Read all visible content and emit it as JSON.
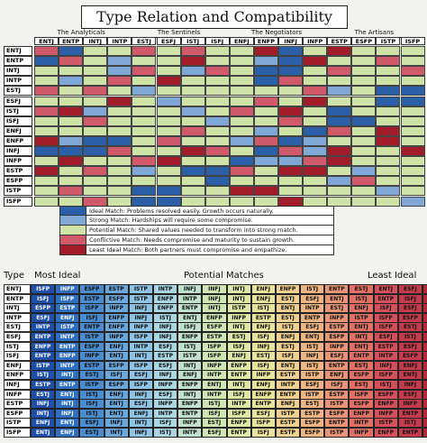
{
  "title": "Type Relation and Compatibility",
  "groups": [
    "The Analyticals",
    "The Sentinels",
    "The Negotiators",
    "The Artisans"
  ],
  "types": [
    "ENTJ",
    "ENTP",
    "INTJ",
    "INTP",
    "ESTJ",
    "ESFJ",
    "ISTJ",
    "ISFJ",
    "ENFJ",
    "ENFP",
    "INFJ",
    "INFP",
    "ESTP",
    "ESFP",
    "ISTP",
    "ISFP"
  ],
  "colors": {
    "ideal": "#2b5fa8",
    "strong": "#7fa8d6",
    "potential": "#cfe3a8",
    "conflict": "#d05a6a",
    "least": "#a21c2a"
  },
  "matrix": [
    [
      "conflict",
      "ideal",
      "potential",
      "potential",
      "conflict",
      "potential",
      "conflict",
      "potential",
      "potential",
      "least",
      "ideal",
      "potential",
      "least",
      "potential",
      "potential",
      "potential"
    ],
    [
      "ideal",
      "conflict",
      "potential",
      "strong",
      "potential",
      "potential",
      "least",
      "potential",
      "potential",
      "strong",
      "ideal",
      "least",
      "potential",
      "potential",
      "conflict",
      "potential"
    ],
    [
      "potential",
      "potential",
      "potential",
      "strong",
      "conflict",
      "potential",
      "strong",
      "conflict",
      "potential",
      "ideal",
      "ideal",
      "potential",
      "conflict",
      "potential",
      "potential",
      "conflict"
    ],
    [
      "potential",
      "strong",
      "potential",
      "conflict",
      "potential",
      "least",
      "potential",
      "potential",
      "potential",
      "ideal",
      "conflict",
      "potential",
      "potential",
      "potential",
      "potential",
      "potential"
    ],
    [
      "conflict",
      "potential",
      "conflict",
      "potential",
      "strong",
      "potential",
      "potential",
      "potential",
      "potential",
      "potential",
      "potential",
      "conflict",
      "strong",
      "potential",
      "ideal",
      "ideal"
    ],
    [
      "potential",
      "potential",
      "potential",
      "least",
      "potential",
      "strong",
      "potential",
      "potential",
      "potential",
      "conflict",
      "potential",
      "least",
      "potential",
      "potential",
      "ideal",
      "ideal"
    ],
    [
      "conflict",
      "least",
      "strong",
      "potential",
      "potential",
      "potential",
      "strong",
      "potential",
      "conflict",
      "potential",
      "least",
      "potential",
      "ideal",
      "potential",
      "potential",
      "potential"
    ],
    [
      "potential",
      "potential",
      "conflict",
      "potential",
      "potential",
      "potential",
      "potential",
      "strong",
      "potential",
      "potential",
      "conflict",
      "potential",
      "ideal",
      "ideal",
      "potential",
      "potential"
    ],
    [
      "potential",
      "potential",
      "potential",
      "potential",
      "potential",
      "potential",
      "conflict",
      "potential",
      "potential",
      "strong",
      "potential",
      "ideal",
      "conflict",
      "potential",
      "least",
      "potential"
    ],
    [
      "least",
      "strong",
      "ideal",
      "ideal",
      "potential",
      "conflict",
      "potential",
      "potential",
      "strong",
      "conflict",
      "ideal",
      "strong",
      "potential",
      "potential",
      "least",
      "potential"
    ],
    [
      "ideal",
      "ideal",
      "ideal",
      "conflict",
      "potential",
      "potential",
      "least",
      "conflict",
      "potential",
      "ideal",
      "conflict",
      "strong",
      "least",
      "potential",
      "potential",
      "least"
    ],
    [
      "potential",
      "least",
      "potential",
      "potential",
      "conflict",
      "least",
      "potential",
      "potential",
      "ideal",
      "strong",
      "strong",
      "conflict",
      "least",
      "potential",
      "potential",
      "potential"
    ],
    [
      "least",
      "potential",
      "conflict",
      "potential",
      "strong",
      "potential",
      "ideal",
      "ideal",
      "conflict",
      "potential",
      "least",
      "least",
      "potential",
      "strong",
      "potential",
      "potential"
    ],
    [
      "potential",
      "potential",
      "potential",
      "potential",
      "potential",
      "potential",
      "potential",
      "ideal",
      "potential",
      "potential",
      "potential",
      "potential",
      "strong",
      "conflict",
      "potential",
      "potential"
    ],
    [
      "potential",
      "conflict",
      "potential",
      "potential",
      "ideal",
      "ideal",
      "potential",
      "potential",
      "least",
      "least",
      "potential",
      "potential",
      "potential",
      "potential",
      "strong",
      "potential"
    ],
    [
      "potential",
      "potential",
      "conflict",
      "potential",
      "ideal",
      "ideal",
      "potential",
      "potential",
      "potential",
      "potential",
      "least",
      "potential",
      "potential",
      "potential",
      "potential",
      "strong"
    ]
  ],
  "legend": [
    {
      "key": "ideal",
      "text": "Ideal Match: Problems resolved easily. Growth occurs naturally."
    },
    {
      "key": "strong",
      "text": "Strong Match: Hardships will require some compromise."
    },
    {
      "key": "potential",
      "text": "Potential Match: Shared values needed to transform into strong match."
    },
    {
      "key": "conflict",
      "text": "Conflictive Match: Needs compromise and maturity to sustain growth."
    },
    {
      "key": "least",
      "text": "Least Ideal Match: Both partners must compromise and empathize."
    }
  ],
  "bottom": {
    "header_type": "Type",
    "header_most": "Most Ideal",
    "header_potential": "Potential Matches",
    "header_least": "Least Ideal",
    "rows": [
      [
        "ENTJ",
        "ISFP",
        "INFP",
        "ESFP",
        "ESTP",
        "ISTP",
        "INTP",
        "INFJ",
        "INFJ",
        "INTJ",
        "ENFJ",
        "ENFP",
        "ISTJ",
        "ENTP",
        "ESTJ",
        "ENTJ",
        "ESFJ",
        "ISFJ"
      ],
      [
        "ENTP",
        "ISFJ",
        "ISFP",
        "ESTP",
        "ESFP",
        "ISTP",
        "ENFP",
        "INTP",
        "INFJ",
        "INTJ",
        "ENFJ",
        "ESTJ",
        "ESFJ",
        "ENTJ",
        "ISTJ",
        "ENTP",
        "ISFJ",
        "ESFP"
      ],
      [
        "INTJ",
        "ESFP",
        "ESTP",
        "ISFP",
        "INFP",
        "INFJ",
        "ENFP",
        "ENTP",
        "INTJ",
        "ISTP",
        "ISTJ",
        "ENTJ",
        "INTP",
        "ESTJ",
        "ENFJ",
        "ISFJ",
        "ESFJ",
        "ISTJ"
      ],
      [
        "INTP",
        "ESFJ",
        "ENFJ",
        "ISFJ",
        "ENFP",
        "INFJ",
        "ISTJ",
        "ENTJ",
        "ENFP",
        "INFP",
        "ESTP",
        "ESTJ",
        "ENTP",
        "INFP",
        "ISTP",
        "ISFP",
        "ESFP",
        "ESTP"
      ],
      [
        "ESTJ",
        "INTP",
        "ISTP",
        "ENTP",
        "ENFP",
        "INFP",
        "INFJ",
        "ISFJ",
        "ESFP",
        "INTJ",
        "ENFJ",
        "ISTJ",
        "ESFJ",
        "ESTP",
        "ENTJ",
        "ISFP",
        "ESTJ",
        "ENTJ"
      ],
      [
        "ESFJ",
        "ENTP",
        "INTP",
        "ISTP",
        "INFP",
        "ISFP",
        "INFJ",
        "ENFP",
        "ESTP",
        "ESTJ",
        "ISFJ",
        "ENFJ",
        "ENTJ",
        "ESFP",
        "INTJ",
        "ESFJ",
        "ISTJ",
        "ISFJ"
      ],
      [
        "ISTJ",
        "ENFP",
        "ENTP",
        "ESFP",
        "ENFJ",
        "INTP",
        "ESFJ",
        "ISTJ",
        "ISFP",
        "ISFJ",
        "INFJ",
        "ESTJ",
        "ISTJ",
        "INFP",
        "ENTJ",
        "ESTP",
        "ESFJ",
        "INTJ"
      ],
      [
        "ISFJ",
        "ENTP",
        "ENFP",
        "INFP",
        "ENTJ",
        "INTJ",
        "ESTP",
        "ISTP",
        "ISFP",
        "ENFJ",
        "ESTJ",
        "ISFJ",
        "INFJ",
        "ESFJ",
        "ENTP",
        "INTP",
        "ESFP",
        "ISTJ"
      ],
      [
        "ENFJ",
        "ISTP",
        "INTP",
        "ESTP",
        "ESFP",
        "ISFP",
        "ESFJ",
        "INTJ",
        "INFP",
        "ENFP",
        "ISFJ",
        "ENTJ",
        "ISTJ",
        "ENTP",
        "ESTJ",
        "INFJ",
        "ENFJ",
        "ISTJ"
      ],
      [
        "ENFP",
        "ISTJ",
        "INTJ",
        "ESTJ",
        "ISFJ",
        "ESFJ",
        "INFJ",
        "ENFJ",
        "INTP",
        "ENTP",
        "INFP",
        "ESTP",
        "ISTP",
        "ENFJ",
        "ESFP",
        "ISFP",
        "ENTJ",
        "ENFP"
      ],
      [
        "INFJ",
        "ESTP",
        "ENTP",
        "ISTP",
        "ESFP",
        "ISFP",
        "INFP",
        "ENFP",
        "ENTJ",
        "INTJ",
        "ENFJ",
        "INTP",
        "ESFJ",
        "ISFJ",
        "ESTJ",
        "ISTJ",
        "INFJ",
        "ENFJ"
      ],
      [
        "INFP",
        "ESTJ",
        "ENTJ",
        "ISTJ",
        "ENFJ",
        "INFJ",
        "ESFJ",
        "INTJ",
        "INTP",
        "ISFJ",
        "ENFP",
        "ENTP",
        "ISTP",
        "ESTP",
        "ISFP",
        "ESFP",
        "ESFJ",
        "INFP"
      ],
      [
        "ESTP",
        "INFJ",
        "INTJ",
        "ISFJ",
        "ENTJ",
        "ESFJ",
        "INFP",
        "ENFP",
        "ISTJ",
        "INTP",
        "ENTP",
        "ENFJ",
        "ESTJ",
        "ISTP",
        "ESFP",
        "ENFP",
        "INFP",
        "ESTP"
      ],
      [
        "ESFP",
        "INTJ",
        "INFJ",
        "ISTJ",
        "ENTJ",
        "ENFJ",
        "INTP",
        "ENTP",
        "ISFJ",
        "ISFP",
        "ESFJ",
        "ISTP",
        "ESTP",
        "ESFP",
        "ENFP",
        "INFP",
        "ENTP",
        "ESTJ"
      ],
      [
        "ISTP",
        "ENFJ",
        "ENTJ",
        "ESFJ",
        "INFJ",
        "INTJ",
        "ISFJ",
        "INFP",
        "ESTJ",
        "ENFP",
        "ISFP",
        "ESTP",
        "ESFP",
        "ENTP",
        "INTP",
        "ISTP",
        "ISTJ",
        "ENFJ"
      ],
      [
        "ISFP",
        "ENTJ",
        "ENFJ",
        "ESTJ",
        "INTJ",
        "INFJ",
        "ISTJ",
        "INTP",
        "ESFJ",
        "ENTP",
        "ISFJ",
        "ESTP",
        "ESFP",
        "ISTP",
        "INFP",
        "ENFP",
        "ENTP",
        "ISFP"
      ]
    ]
  }
}
